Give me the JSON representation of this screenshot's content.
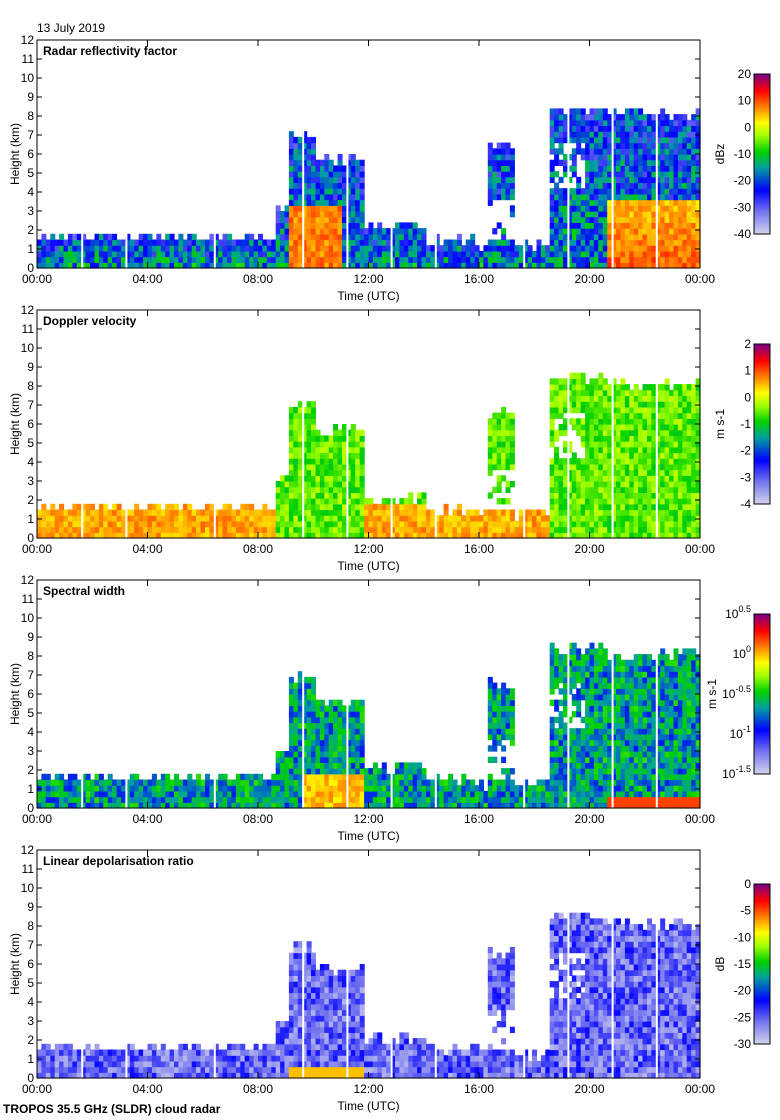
{
  "date": "13 July 2019",
  "footer": "TROPOS 35.5 GHz (SLDR) cloud radar",
  "chart_data": [
    {
      "type": "heatmap",
      "title": "Radar reflectivity factor",
      "xlabel": "Time (UTC)",
      "ylabel": "Height (km)",
      "xticks": [
        "00:00",
        "04:00",
        "08:00",
        "12:00",
        "16:00",
        "20:00",
        "00:00"
      ],
      "ylim": [
        0,
        12
      ],
      "yticks": [
        "0",
        "1",
        "2",
        "3",
        "4",
        "5",
        "6",
        "7",
        "8",
        "9",
        "10",
        "11",
        "12"
      ],
      "colorbar": {
        "label": "dBz",
        "ticks": [
          "20",
          "10",
          "0",
          "-10",
          "-20",
          "-30",
          "-40"
        ],
        "range": [
          -40,
          20
        ]
      }
    },
    {
      "type": "heatmap",
      "title": "Doppler velocity",
      "xlabel": "Time (UTC)",
      "ylabel": "Height (km)",
      "xticks": [
        "00:00",
        "04:00",
        "08:00",
        "12:00",
        "16:00",
        "20:00",
        "00:00"
      ],
      "ylim": [
        0,
        12
      ],
      "yticks": [
        "0",
        "1",
        "2",
        "3",
        "4",
        "5",
        "6",
        "7",
        "8",
        "9",
        "10",
        "11",
        "12"
      ],
      "colorbar": {
        "label": "m s-1",
        "ticks": [
          "2",
          "1",
          "0",
          "-1",
          "-2",
          "-3",
          "-4"
        ],
        "range": [
          -4,
          2
        ]
      }
    },
    {
      "type": "heatmap",
      "title": "Spectral width",
      "xlabel": "Time (UTC)",
      "ylabel": "Height (km)",
      "xticks": [
        "00:00",
        "04:00",
        "08:00",
        "12:00",
        "16:00",
        "20:00",
        "00:00"
      ],
      "ylim": [
        0,
        12
      ],
      "yticks": [
        "0",
        "1",
        "2",
        "3",
        "4",
        "5",
        "6",
        "7",
        "8",
        "9",
        "10",
        "11",
        "12"
      ],
      "colorbar": {
        "label": "m s-1",
        "ticks": [
          "10^0.5",
          "10^0",
          "10^-0.5",
          "10^-1",
          "10^-1.5"
        ],
        "range": [
          -1.5,
          0.5
        ],
        "scale": "log"
      }
    },
    {
      "type": "heatmap",
      "title": "Linear depolarisation ratio",
      "xlabel": "Time (UTC)",
      "ylabel": "Height (km)",
      "xticks": [
        "00:00",
        "04:00",
        "08:00",
        "12:00",
        "16:00",
        "20:00",
        "00:00"
      ],
      "ylim": [
        0,
        12
      ],
      "yticks": [
        "0",
        "1",
        "2",
        "3",
        "4",
        "5",
        "6",
        "7",
        "8",
        "9",
        "10",
        "11",
        "12"
      ],
      "colorbar": {
        "label": "dB",
        "ticks": [
          "0",
          "-5",
          "-10",
          "-15",
          "-20",
          "-25",
          "-30"
        ],
        "range": [
          -30,
          0
        ]
      }
    }
  ]
}
